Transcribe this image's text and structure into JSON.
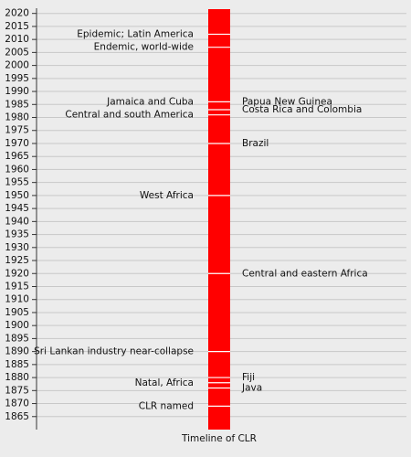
{
  "chart_data": {
    "type": "timeline",
    "xlabel": "Timeline of CLR",
    "color": "#ff0000",
    "ylim": [
      1860,
      2022
    ],
    "yticks": [
      1865,
      1870,
      1875,
      1880,
      1885,
      1890,
      1895,
      1900,
      1905,
      1910,
      1915,
      1920,
      1925,
      1930,
      1935,
      1940,
      1945,
      1950,
      1955,
      1960,
      1965,
      1970,
      1975,
      1980,
      1985,
      1990,
      1995,
      2000,
      2005,
      2010,
      2015,
      2020
    ],
    "grid": true,
    "events": [
      {
        "label": "Epidemic; Latin America",
        "year": 2012,
        "side": "left"
      },
      {
        "label": "Endemic, world-wide",
        "year": 2007,
        "side": "left"
      },
      {
        "label": "Jamaica and Cuba",
        "year": 1986,
        "side": "left"
      },
      {
        "label": "Central and south America",
        "year": 1981,
        "side": "left"
      },
      {
        "label": "West Africa",
        "year": 1950,
        "side": "left"
      },
      {
        "label": "Sri Lankan industry near-collapse",
        "year": 1890,
        "side": "left"
      },
      {
        "label": "Natal, Africa",
        "year": 1878,
        "side": "left"
      },
      {
        "label": "CLR named",
        "year": 1869,
        "side": "left"
      },
      {
        "label": "Papua New Guinea",
        "year": 1986,
        "side": "right"
      },
      {
        "label": "Costa Rica and Colombia",
        "year": 1983,
        "side": "right"
      },
      {
        "label": "Brazil",
        "year": 1970,
        "side": "right"
      },
      {
        "label": "Central and eastern Africa",
        "year": 1920,
        "side": "right"
      },
      {
        "label": "Fiji",
        "year": 1880,
        "side": "right"
      },
      {
        "label": "Java",
        "year": 1876,
        "side": "right"
      }
    ]
  }
}
